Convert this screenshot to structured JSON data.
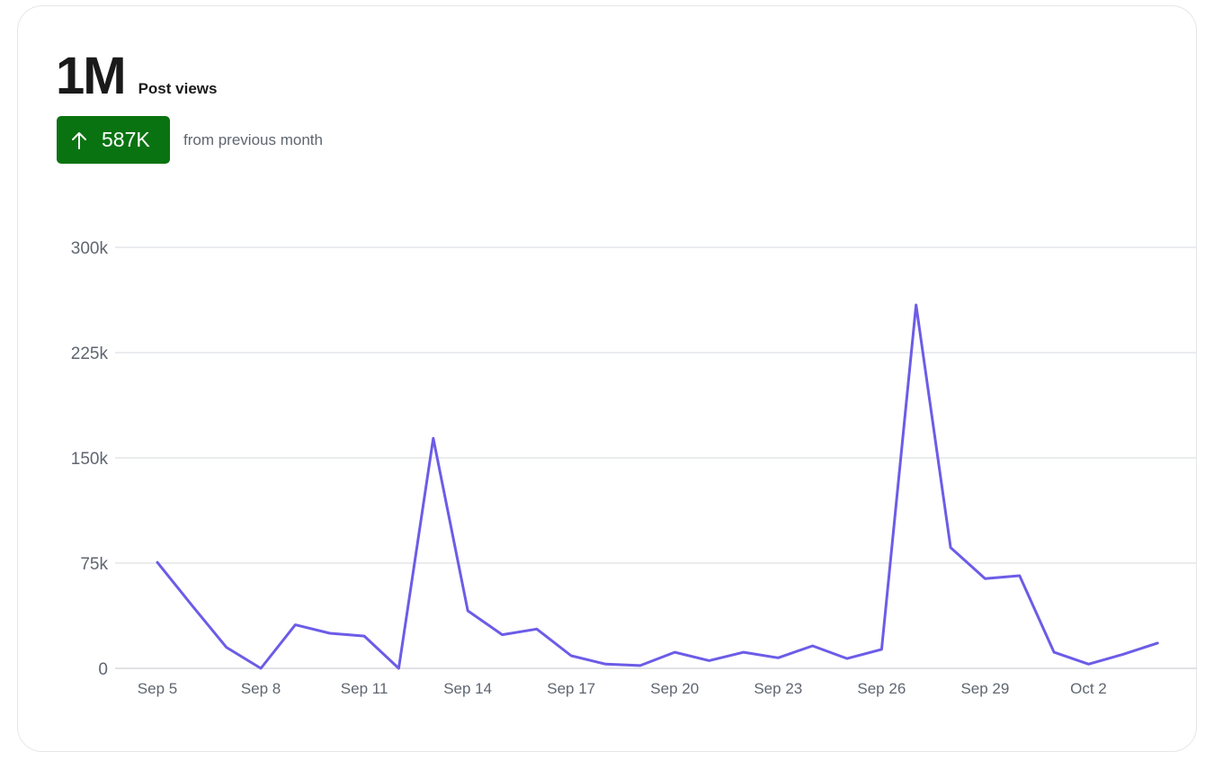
{
  "card": {
    "headline_value": "1M",
    "headline_label": "Post views",
    "delta": {
      "direction": "up",
      "value": "587K",
      "caption": "from previous month",
      "badge_color": "#0a7311"
    }
  },
  "chart_data": {
    "type": "line",
    "x": [
      "Sep 5",
      "Sep 6",
      "Sep 7",
      "Sep 8",
      "Sep 9",
      "Sep 10",
      "Sep 11",
      "Sep 12",
      "Sep 13",
      "Sep 14",
      "Sep 15",
      "Sep 16",
      "Sep 17",
      "Sep 18",
      "Sep 19",
      "Sep 20",
      "Sep 21",
      "Sep 22",
      "Sep 23",
      "Sep 24",
      "Sep 25",
      "Sep 26",
      "Sep 27",
      "Sep 28",
      "Sep 29",
      "Sep 30",
      "Oct 1",
      "Oct 2",
      "Oct 3",
      "Oct 4"
    ],
    "series": [
      {
        "values": [
          75500,
          45000,
          15000,
          0,
          31000,
          25000,
          23000,
          0,
          164000,
          41000,
          24000,
          28000,
          9000,
          3000,
          2000,
          11500,
          5500,
          11500,
          7500,
          16000,
          7000,
          13500,
          259000,
          86000,
          64000,
          66000,
          11500,
          3000,
          10000,
          18000
        ],
        "color": "#6c5ce7"
      }
    ],
    "x_ticks": [
      "Sep 5",
      "Sep 8",
      "Sep 11",
      "Sep 14",
      "Sep 17",
      "Sep 20",
      "Sep 23",
      "Sep 26",
      "Sep 29",
      "Oct 2"
    ],
    "y_ticks": [
      {
        "value": 0,
        "label": "0"
      },
      {
        "value": 75000,
        "label": "75k"
      },
      {
        "value": 150000,
        "label": "150k"
      },
      {
        "value": 225000,
        "label": "225k"
      },
      {
        "value": 300000,
        "label": "300k"
      }
    ],
    "ylim": [
      0,
      300000
    ],
    "grid": true,
    "line_color": "#6c5ce7",
    "grid_color": "#e3e5e8"
  }
}
